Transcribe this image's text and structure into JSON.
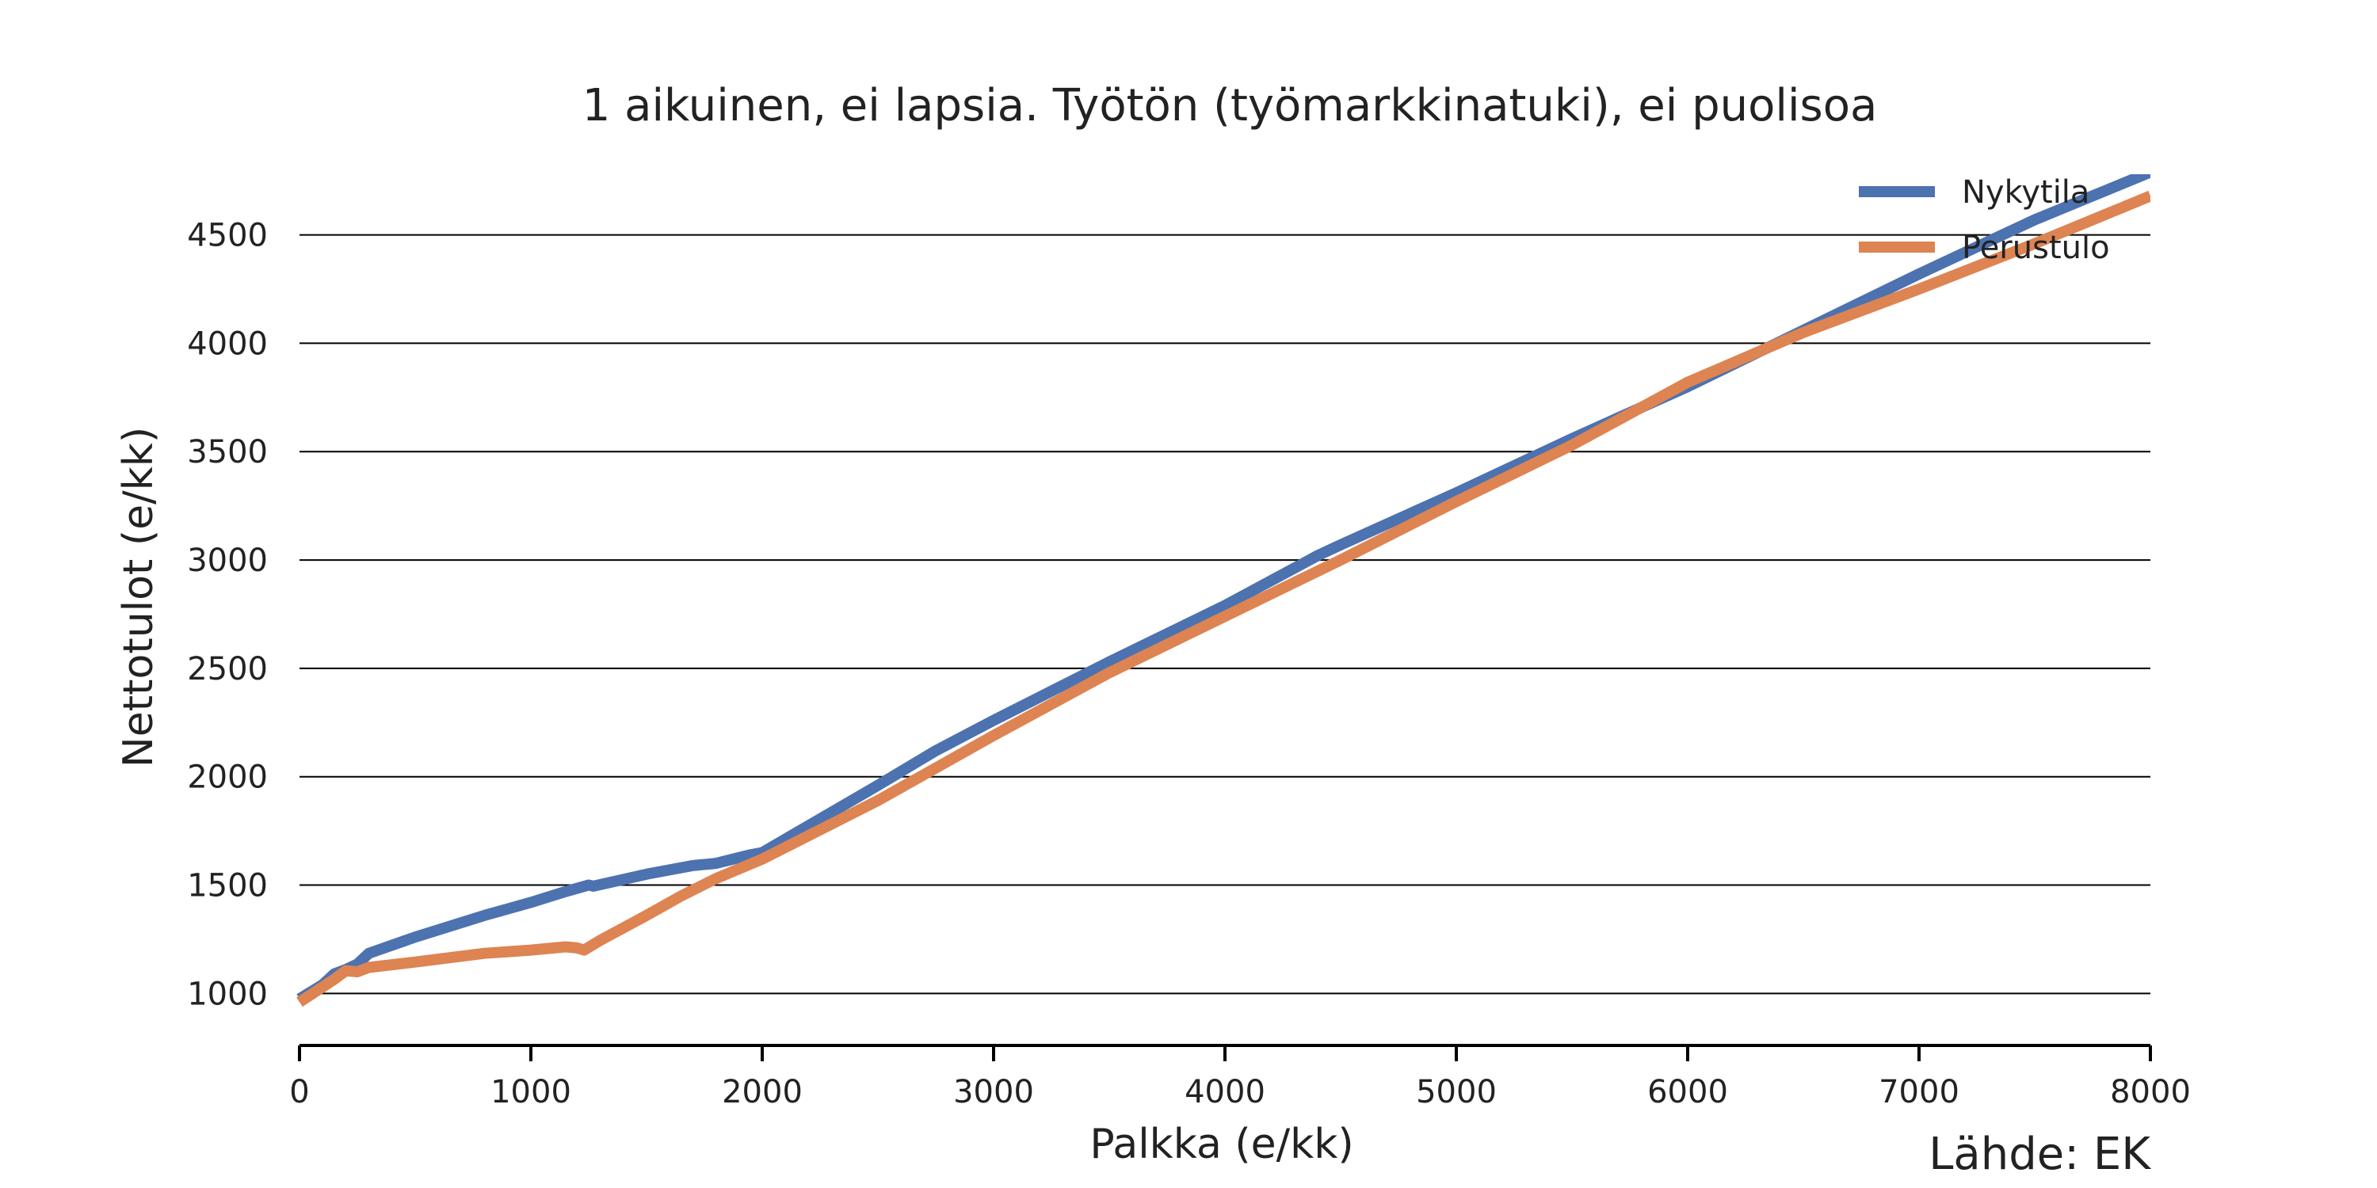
{
  "chart_data": {
    "type": "line",
    "title": "1 aikuinen, ei lapsia. Työtön (työmarkkinatuki), ei puolisoa",
    "xlabel": "Palkka (e/kk)",
    "ylabel": "Nettotulot (e/kk)",
    "source": "Lähde: EK",
    "xlim": [
      0,
      8000
    ],
    "ylim": [
      760,
      4780
    ],
    "xticks": [
      0,
      1000,
      2000,
      3000,
      4000,
      5000,
      6000,
      7000,
      8000
    ],
    "xtick_labels": [
      "0",
      "1000",
      "2000",
      "3000",
      "4000",
      "5000",
      "6000",
      "7000",
      "8000"
    ],
    "yticks": [
      1000,
      1500,
      2000,
      2500,
      3000,
      3500,
      4000,
      4500
    ],
    "ytick_labels": [
      "1000",
      "1500",
      "2000",
      "2500",
      "3000",
      "3500",
      "4000",
      "4500"
    ],
    "grid": "horizontal",
    "legend_position": "top-right",
    "series": [
      {
        "name": "Nykytila",
        "color": "#4C72B0",
        "x": [
          0,
          100,
          150,
          200,
          250,
          300,
          500,
          800,
          1000,
          1150,
          1250,
          1270,
          1500,
          1700,
          1800,
          1950,
          2000,
          2500,
          2750,
          3000,
          3500,
          4000,
          4400,
          4500,
          5000,
          5500,
          6000,
          6500,
          7000,
          7500,
          7750,
          8000
        ],
        "y": [
          975,
          1040,
          1090,
          1110,
          1135,
          1185,
          1260,
          1360,
          1420,
          1470,
          1500,
          1495,
          1550,
          1590,
          1600,
          1640,
          1650,
          1960,
          2120,
          2260,
          2530,
          2790,
          3020,
          3070,
          3310,
          3560,
          3800,
          4060,
          4320,
          4570,
          4680,
          4790
        ]
      },
      {
        "name": "Perustulo",
        "color": "#DD8452",
        "x": [
          0,
          100,
          150,
          200,
          250,
          300,
          500,
          800,
          1000,
          1150,
          1200,
          1230,
          1300,
          1500,
          1650,
          1800,
          2000,
          2500,
          3000,
          3500,
          4000,
          4500,
          5000,
          5500,
          6000,
          6500,
          7000,
          7500,
          8000
        ],
        "y": [
          960,
          1030,
          1065,
          1105,
          1100,
          1120,
          1145,
          1185,
          1200,
          1215,
          1210,
          1200,
          1245,
          1360,
          1450,
          1530,
          1620,
          1890,
          2190,
          2480,
          2740,
          3000,
          3270,
          3530,
          3820,
          4050,
          4250,
          4460,
          4680
        ]
      }
    ]
  }
}
